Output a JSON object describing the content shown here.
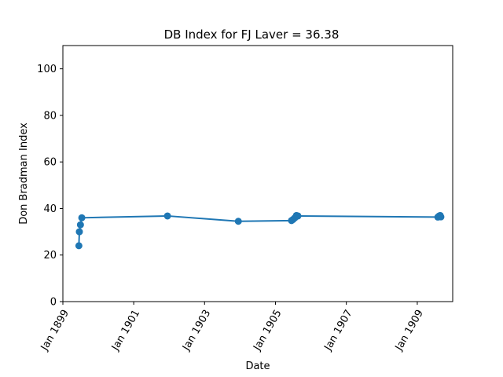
{
  "chart_data": {
    "type": "line",
    "title": "DB Index for FJ Laver = 36.38",
    "xlabel": "Date",
    "ylabel": "Don Bradman Index",
    "ylim": [
      0,
      110
    ],
    "xlim": [
      "1899-01-01",
      "1910-01-01"
    ],
    "y_ticks": [
      0,
      20,
      40,
      60,
      80,
      100
    ],
    "x_ticks": [
      {
        "date": "1899-01-01",
        "label": "Jan 1899"
      },
      {
        "date": "1901-01-01",
        "label": "Jan 1901"
      },
      {
        "date": "1903-01-01",
        "label": "Jan 1903"
      },
      {
        "date": "1905-01-01",
        "label": "Jan 1905"
      },
      {
        "date": "1907-01-01",
        "label": "Jan 1907"
      },
      {
        "date": "1909-01-01",
        "label": "Jan 1909"
      }
    ],
    "grid": false,
    "color": "#1f77b4",
    "series": [
      {
        "x": [
          "1899-06-15",
          "1899-06-20",
          "1899-07-01",
          "1899-07-15",
          "1901-12-15",
          "1903-12-15",
          "1905-06-15",
          "1905-07-01",
          "1905-07-20",
          "1905-08-05",
          "1905-08-20",
          "1909-08-01",
          "1909-08-15",
          "1909-08-25",
          "1909-09-01"
        ],
        "y": [
          24,
          30,
          33,
          36,
          36.8,
          34.5,
          34.8,
          35.3,
          36,
          37,
          36.8,
          36.3,
          36.8,
          37,
          36.38
        ]
      }
    ]
  }
}
